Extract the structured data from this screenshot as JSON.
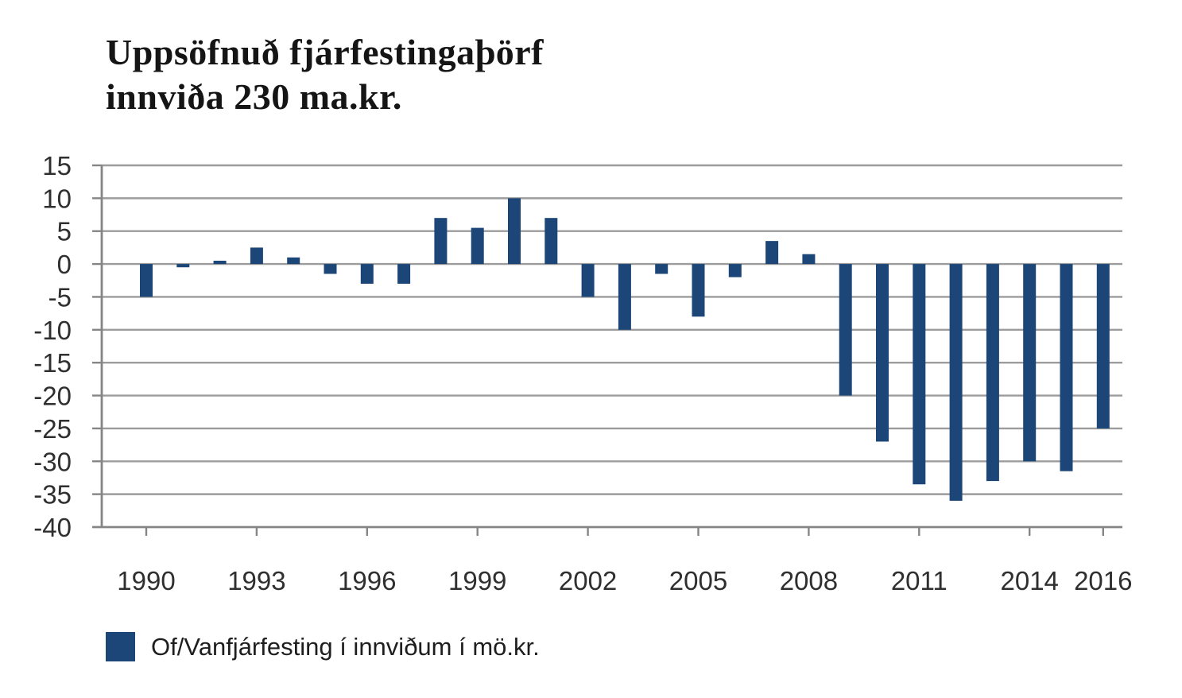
{
  "title": {
    "line1": "Uppsöfnuð fjárfestingaþörf",
    "line2": "innviða 230 ma.kr."
  },
  "legend": {
    "label": "Of/Vanfjárfesting í innviðum í mö.kr.",
    "swatch_color": "#1b4677"
  },
  "colors": {
    "bar": "#1b4677",
    "gridline": "#9c9c9c",
    "axis": "#858585",
    "text": "#2f2f2f",
    "background": "#ffffff"
  },
  "chart_data": {
    "type": "bar",
    "title": "Uppsöfnuð fjárfestingaþörf innviða 230 ma.kr.",
    "series_name": "Of/Vanfjárfesting í innviðum í mö.kr.",
    "xlabel": "",
    "ylabel": "",
    "unit": "mö.kr.",
    "categories": [
      1990,
      1991,
      1992,
      1993,
      1994,
      1995,
      1996,
      1997,
      1998,
      1999,
      2000,
      2001,
      2002,
      2003,
      2004,
      2005,
      2006,
      2007,
      2008,
      2009,
      2010,
      2011,
      2012,
      2013,
      2014,
      2015,
      2016
    ],
    "values": [
      -5,
      -0.5,
      0.5,
      2.5,
      1,
      -1.5,
      -3,
      -3,
      7,
      5.5,
      10,
      7,
      -5,
      -10,
      -1.5,
      -8,
      -2,
      3.5,
      1.5,
      -20,
      -27,
      -33.5,
      -36,
      -33,
      -30,
      -31.5,
      -25
    ],
    "ylim": [
      -40,
      15
    ],
    "yticks": [
      15,
      10,
      5,
      0,
      -5,
      -10,
      -15,
      -20,
      -25,
      -30,
      -35,
      -40
    ],
    "xticks_labeled": [
      1990,
      1993,
      1996,
      1999,
      2002,
      2005,
      2008,
      2011,
      2014,
      2016
    ],
    "grid": true,
    "legend_position": "bottom-left"
  }
}
